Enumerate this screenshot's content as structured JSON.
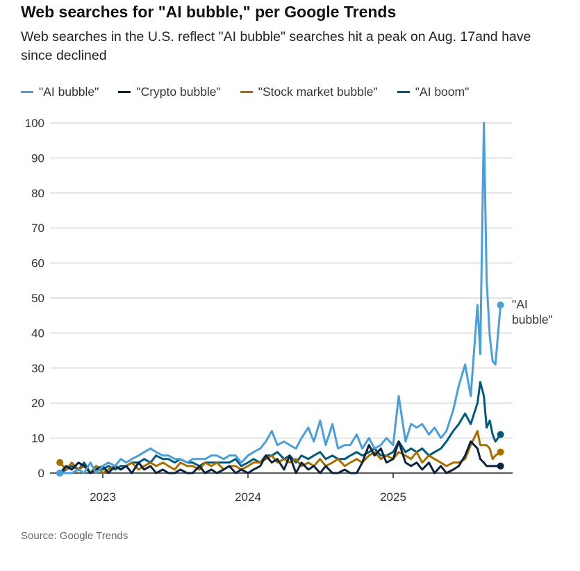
{
  "chart_data": {
    "type": "line",
    "title": "Web searches for \"AI bubble,\" per Google Trends",
    "subtitle": "Web searches in the U.S. reflect \"AI bubble\" searches hit a peak on Aug. 17and have since declined",
    "source": "Source: Google Trends",
    "ylim": [
      0,
      100
    ],
    "yticks": [
      "0",
      "10",
      "20",
      "30",
      "40",
      "50",
      "60",
      "70",
      "80",
      "90",
      "100"
    ],
    "xticks": [
      "2023",
      "2024",
      "2025"
    ],
    "grid": true,
    "legend": "top",
    "end_label": "\"AI bubble\"",
    "x": [
      "2022-09-15",
      "2022-10-01",
      "2022-10-15",
      "2022-11-01",
      "2022-11-15",
      "2022-12-01",
      "2022-12-15",
      "2023-01-01",
      "2023-01-15",
      "2023-02-01",
      "2023-02-15",
      "2023-03-01",
      "2023-03-15",
      "2023-04-01",
      "2023-04-15",
      "2023-05-01",
      "2023-05-15",
      "2023-06-01",
      "2023-06-15",
      "2023-07-01",
      "2023-07-15",
      "2023-08-01",
      "2023-08-15",
      "2023-09-01",
      "2023-09-15",
      "2023-10-01",
      "2023-10-15",
      "2023-11-01",
      "2023-11-15",
      "2023-12-01",
      "2023-12-15",
      "2024-01-01",
      "2024-01-15",
      "2024-02-01",
      "2024-02-15",
      "2024-03-01",
      "2024-03-15",
      "2024-04-01",
      "2024-04-15",
      "2024-05-01",
      "2024-05-15",
      "2024-06-01",
      "2024-06-15",
      "2024-07-01",
      "2024-07-15",
      "2024-08-01",
      "2024-08-15",
      "2024-09-01",
      "2024-09-15",
      "2024-10-01",
      "2024-10-15",
      "2024-11-01",
      "2024-11-15",
      "2024-12-01",
      "2024-12-15",
      "2025-01-01",
      "2025-01-15",
      "2025-02-01",
      "2025-02-15",
      "2025-03-01",
      "2025-03-15",
      "2025-04-01",
      "2025-04-15",
      "2025-05-01",
      "2025-05-15",
      "2025-06-01",
      "2025-06-15",
      "2025-07-01",
      "2025-07-15",
      "2025-08-01",
      "2025-08-08",
      "2025-08-17",
      "2025-08-24",
      "2025-09-01",
      "2025-09-08",
      "2025-09-15",
      "2025-09-28"
    ],
    "series": [
      {
        "name": "\"AI bubble\"",
        "color": "#4a9fdb",
        "values": [
          0,
          0,
          0,
          1,
          0,
          3,
          0,
          2,
          3,
          2,
          4,
          3,
          4,
          5,
          6,
          7,
          6,
          5,
          5,
          4,
          4,
          3,
          4,
          4,
          4,
          5,
          5,
          4,
          5,
          5,
          3,
          5,
          6,
          7,
          9,
          12,
          8,
          9,
          8,
          7,
          10,
          13,
          9,
          15,
          8,
          14,
          7,
          8,
          8,
          11,
          7,
          10,
          7,
          8,
          10,
          8,
          22,
          9,
          14,
          13,
          14,
          11,
          13,
          10,
          12,
          18,
          25,
          31,
          22,
          48,
          34,
          100,
          55,
          39,
          32,
          31,
          48
        ]
      },
      {
        "name": "\"Crypto bubble\"",
        "color": "#0c2340",
        "values": [
          0,
          2,
          1,
          3,
          2,
          0,
          1,
          2,
          0,
          2,
          1,
          2,
          0,
          3,
          1,
          2,
          0,
          1,
          0,
          0,
          1,
          0,
          0,
          2,
          0,
          1,
          0,
          1,
          2,
          0,
          1,
          0,
          1,
          2,
          5,
          3,
          4,
          1,
          5,
          0,
          3,
          1,
          2,
          0,
          2,
          0,
          0,
          1,
          0,
          0,
          3,
          8,
          5,
          7,
          3,
          4,
          9,
          3,
          2,
          3,
          1,
          3,
          0,
          2,
          0,
          1,
          2,
          5,
          9,
          7,
          4,
          3,
          2,
          2,
          2,
          2,
          2
        ]
      },
      {
        "name": "\"Stock market bubble\"",
        "color": "#a86f00",
        "values": [
          3,
          1,
          3,
          1,
          2,
          0,
          2,
          0,
          1,
          2,
          1,
          2,
          3,
          1,
          2,
          3,
          2,
          3,
          2,
          1,
          3,
          2,
          2,
          1,
          3,
          2,
          3,
          1,
          2,
          2,
          1,
          2,
          3,
          3,
          4,
          5,
          3,
          4,
          3,
          4,
          2,
          3,
          2,
          4,
          2,
          3,
          4,
          2,
          3,
          4,
          3,
          5,
          6,
          4,
          5,
          4,
          6,
          5,
          4,
          6,
          3,
          5,
          4,
          3,
          2,
          3,
          3,
          4,
          8,
          12,
          8,
          8,
          8,
          7,
          4,
          5,
          6
        ]
      },
      {
        "name": "\"AI boom\"",
        "color": "#005a7d",
        "values": [
          0,
          1,
          2,
          1,
          3,
          0,
          2,
          1,
          2,
          1,
          2,
          2,
          3,
          3,
          4,
          3,
          5,
          4,
          4,
          3,
          4,
          3,
          3,
          2,
          3,
          3,
          3,
          3,
          3,
          4,
          2,
          3,
          4,
          3,
          5,
          5,
          6,
          4,
          5,
          3,
          5,
          4,
          5,
          6,
          4,
          5,
          4,
          4,
          5,
          6,
          5,
          6,
          7,
          5,
          5,
          6,
          9,
          6,
          7,
          6,
          7,
          5,
          6,
          7,
          9,
          12,
          14,
          17,
          14,
          20,
          26,
          22,
          13,
          15,
          11,
          9,
          11
        ]
      }
    ]
  }
}
